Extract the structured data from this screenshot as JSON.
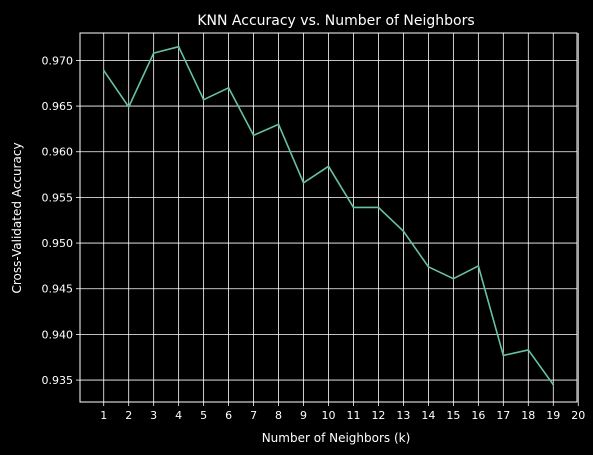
{
  "chart_data": {
    "type": "line",
    "title": "KNN Accuracy vs. Number of Neighbors",
    "xlabel": "Number of Neighbors (k)",
    "ylabel": "Cross-Validated Accuracy",
    "xlim": [
      0.05,
      19.95
    ],
    "ylim": [
      0.9326,
      0.973
    ],
    "grid": true,
    "x_ticks": [
      1,
      2,
      3,
      4,
      5,
      6,
      7,
      8,
      9,
      10,
      11,
      12,
      13,
      14,
      15,
      16,
      17,
      18,
      19,
      20
    ],
    "y_ticks": [
      0.935,
      0.94,
      0.945,
      0.95,
      0.955,
      0.96,
      0.965,
      0.97
    ],
    "x": [
      1,
      2,
      3,
      4,
      5,
      6,
      7,
      8,
      9,
      10,
      11,
      12,
      13,
      14,
      15,
      16,
      17,
      18,
      19
    ],
    "series": [
      {
        "color": "#66c2a5",
        "values": [
          0.9689,
          0.9649,
          0.9708,
          0.9715,
          0.9657,
          0.967,
          0.9618,
          0.963,
          0.9566,
          0.9584,
          0.9539,
          0.9539,
          0.9513,
          0.9474,
          0.9461,
          0.9475,
          0.9377,
          0.9383,
          0.9345
        ]
      }
    ]
  },
  "colors": {
    "background": "#000000",
    "foreground": "#ffffff",
    "line": "#66c2a5"
  }
}
